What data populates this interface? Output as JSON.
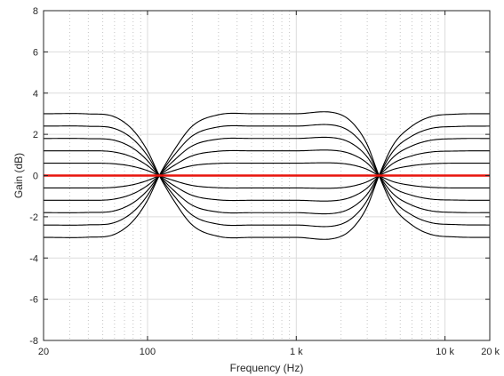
{
  "chart_data": {
    "type": "line",
    "title": "",
    "xlabel": "Frequency (Hz)",
    "ylabel": "Gain (dB)",
    "x_scale": "log",
    "xlim": [
      20,
      20000
    ],
    "ylim": [
      -8,
      8
    ],
    "x_ticks": [
      {
        "value": 20,
        "label": "20"
      },
      {
        "value": 100,
        "label": "100"
      },
      {
        "value": 1000,
        "label": "1 k"
      },
      {
        "value": 10000,
        "label": "10 k"
      },
      {
        "value": 20000,
        "label": "20 k"
      }
    ],
    "y_ticks": [
      {
        "value": -8,
        "label": "-8"
      },
      {
        "value": -6,
        "label": "-6"
      },
      {
        "value": -4,
        "label": "-4"
      },
      {
        "value": -2,
        "label": "-2"
      },
      {
        "value": 0,
        "label": "0"
      },
      {
        "value": 2,
        "label": "2"
      },
      {
        "value": 4,
        "label": "4"
      },
      {
        "value": 6,
        "label": "6"
      },
      {
        "value": 8,
        "label": "8"
      }
    ],
    "grid": {
      "x_major": "solid",
      "x_minor": "dotted",
      "y_major": "solid"
    },
    "crossover_frequencies": [
      120,
      3600
    ],
    "x": [
      20,
      40,
      60,
      80,
      100,
      120,
      150,
      200,
      300,
      500,
      1000,
      2000,
      2500,
      3000,
      3600,
      4500,
      6000,
      8000,
      12000,
      20000
    ],
    "series": [
      {
        "color": "#000000",
        "values": [
          3.0,
          2.99,
          2.85,
          2.2,
          1.2,
          0,
          -1.2,
          -2.4,
          -2.95,
          -3.0,
          -3.0,
          -2.95,
          -2.4,
          -1.5,
          0,
          1.5,
          2.4,
          2.85,
          2.98,
          3.0
        ]
      },
      {
        "color": "#000000",
        "values": [
          2.4,
          2.39,
          2.28,
          1.76,
          0.96,
          0,
          -0.96,
          -1.92,
          -2.36,
          -2.4,
          -2.4,
          -2.36,
          -1.92,
          -1.2,
          0,
          1.2,
          1.92,
          2.28,
          2.38,
          2.4
        ]
      },
      {
        "color": "#000000",
        "values": [
          1.8,
          1.79,
          1.71,
          1.32,
          0.72,
          0,
          -0.72,
          -1.44,
          -1.77,
          -1.8,
          -1.8,
          -1.77,
          -1.44,
          -0.9,
          0,
          0.9,
          1.44,
          1.71,
          1.79,
          1.8
        ]
      },
      {
        "color": "#000000",
        "values": [
          1.2,
          1.2,
          1.14,
          0.88,
          0.48,
          0,
          -0.48,
          -0.96,
          -1.18,
          -1.2,
          -1.2,
          -1.18,
          -0.96,
          -0.6,
          0,
          0.6,
          0.96,
          1.14,
          1.19,
          1.2
        ]
      },
      {
        "color": "#000000",
        "values": [
          0.6,
          0.6,
          0.57,
          0.44,
          0.24,
          0,
          -0.24,
          -0.48,
          -0.59,
          -0.6,
          -0.6,
          -0.59,
          -0.48,
          -0.3,
          0,
          0.3,
          0.48,
          0.57,
          0.6,
          0.6
        ]
      },
      {
        "color": "#000000",
        "values": [
          -0.6,
          -0.6,
          -0.57,
          -0.44,
          -0.24,
          0,
          0.24,
          0.48,
          0.59,
          0.6,
          0.6,
          0.59,
          0.48,
          0.3,
          0,
          -0.3,
          -0.48,
          -0.57,
          -0.6,
          -0.6
        ]
      },
      {
        "color": "#000000",
        "values": [
          -1.2,
          -1.2,
          -1.14,
          -0.88,
          -0.48,
          0,
          0.48,
          0.96,
          1.18,
          1.2,
          1.2,
          1.18,
          0.96,
          0.6,
          0,
          -0.6,
          -0.96,
          -1.14,
          -1.19,
          -1.2
        ]
      },
      {
        "color": "#000000",
        "values": [
          -1.8,
          -1.79,
          -1.71,
          -1.32,
          -0.72,
          0,
          0.72,
          1.44,
          1.77,
          1.8,
          1.8,
          1.77,
          1.44,
          0.9,
          0,
          -0.9,
          -1.44,
          -1.71,
          -1.79,
          -1.8
        ]
      },
      {
        "color": "#000000",
        "values": [
          -2.4,
          -2.39,
          -2.28,
          -1.76,
          -0.96,
          0,
          0.96,
          1.92,
          2.36,
          2.4,
          2.4,
          2.36,
          1.92,
          1.2,
          0,
          -1.2,
          -1.92,
          -2.28,
          -2.38,
          -2.4
        ]
      },
      {
        "color": "#000000",
        "values": [
          -3.0,
          -2.99,
          -2.85,
          -2.2,
          -1.2,
          0,
          1.2,
          2.4,
          2.95,
          3.0,
          3.0,
          2.95,
          2.4,
          1.5,
          0,
          -1.5,
          -2.4,
          -2.85,
          -2.98,
          -3.0
        ]
      },
      {
        "color": "#e8140c",
        "values": [
          0,
          0,
          0,
          0,
          0,
          0,
          0,
          0,
          0,
          0,
          0,
          0,
          0,
          0,
          0,
          0,
          0,
          0,
          0,
          0
        ]
      }
    ]
  }
}
